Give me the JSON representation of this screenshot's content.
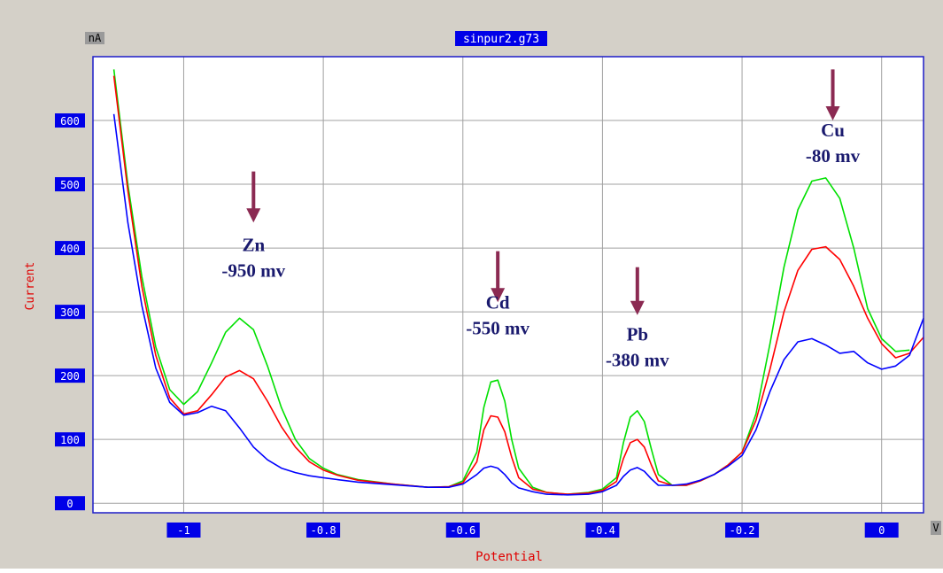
{
  "window": {
    "title": "sinpur2.g73"
  },
  "colors": {
    "panel_bg": "#d4d0c8",
    "plot_bg": "#ffffff",
    "plot_border": "#1c1cc8",
    "grid": "#a0a0a0",
    "tick_label_bg": "#0000e8",
    "tick_label_fg": "#ffffff",
    "axis_title": "#e00000",
    "annotation_text": "#1a1a6e",
    "arrow": "#8b2a52"
  },
  "chart_data": {
    "type": "line",
    "title": "sinpur2.g73",
    "xlabel": "Potential",
    "ylabel": "Current",
    "x_unit": "V",
    "y_unit": "nA",
    "xlim": [
      -1.13,
      0.06
    ],
    "ylim": [
      -15,
      700
    ],
    "x_ticks": [
      {
        "value": -1,
        "label": "-1"
      },
      {
        "value": -0.8,
        "label": "-0.8"
      },
      {
        "value": -0.6,
        "label": "-0.6"
      },
      {
        "value": -0.4,
        "label": "-0.4"
      },
      {
        "value": -0.2,
        "label": "-0.2"
      },
      {
        "value": 0,
        "label": "0"
      }
    ],
    "y_ticks": [
      {
        "value": 0,
        "label": "0"
      },
      {
        "value": 100,
        "label": "100"
      },
      {
        "value": 200,
        "label": "200"
      },
      {
        "value": 300,
        "label": "300"
      },
      {
        "value": 400,
        "label": "400"
      },
      {
        "value": 500,
        "label": "500"
      },
      {
        "value": 600,
        "label": "600"
      }
    ],
    "grid": true,
    "legend": "none",
    "series": [
      {
        "color": "#00e000",
        "x": [
          -1.1,
          -1.08,
          -1.06,
          -1.04,
          -1.02,
          -1.0,
          -0.98,
          -0.96,
          -0.94,
          -0.92,
          -0.9,
          -0.88,
          -0.86,
          -0.84,
          -0.82,
          -0.8,
          -0.78,
          -0.75,
          -0.7,
          -0.65,
          -0.62,
          -0.6,
          -0.58,
          -0.57,
          -0.56,
          -0.55,
          -0.54,
          -0.53,
          -0.52,
          -0.5,
          -0.48,
          -0.45,
          -0.42,
          -0.4,
          -0.38,
          -0.37,
          -0.36,
          -0.35,
          -0.34,
          -0.33,
          -0.32,
          -0.3,
          -0.28,
          -0.26,
          -0.24,
          -0.22,
          -0.2,
          -0.18,
          -0.16,
          -0.14,
          -0.12,
          -0.1,
          -0.08,
          -0.06,
          -0.04,
          -0.02,
          0.0,
          0.02,
          0.04,
          0.06
        ],
        "y": [
          680,
          500,
          355,
          245,
          178,
          155,
          175,
          220,
          268,
          290,
          272,
          215,
          150,
          100,
          70,
          55,
          45,
          37,
          30,
          25,
          26,
          35,
          80,
          150,
          190,
          193,
          160,
          100,
          55,
          25,
          17,
          14,
          17,
          22,
          40,
          95,
          135,
          145,
          128,
          85,
          45,
          28,
          28,
          35,
          45,
          60,
          80,
          140,
          250,
          370,
          460,
          505,
          510,
          478,
          400,
          305,
          258,
          238,
          240,
          null
        ]
      },
      {
        "color": "#ff0000",
        "x": [
          -1.1,
          -1.08,
          -1.06,
          -1.04,
          -1.02,
          -1.0,
          -0.98,
          -0.96,
          -0.94,
          -0.92,
          -0.9,
          -0.88,
          -0.86,
          -0.84,
          -0.82,
          -0.8,
          -0.78,
          -0.75,
          -0.7,
          -0.65,
          -0.62,
          -0.6,
          -0.58,
          -0.57,
          -0.56,
          -0.55,
          -0.54,
          -0.53,
          -0.52,
          -0.5,
          -0.48,
          -0.45,
          -0.42,
          -0.4,
          -0.38,
          -0.37,
          -0.36,
          -0.35,
          -0.34,
          -0.33,
          -0.32,
          -0.3,
          -0.28,
          -0.26,
          -0.24,
          -0.22,
          -0.2,
          -0.18,
          -0.16,
          -0.14,
          -0.12,
          -0.1,
          -0.08,
          -0.06,
          -0.04,
          -0.02,
          0.0,
          0.02,
          0.04,
          0.06
        ],
        "y": [
          670,
          490,
          340,
          232,
          165,
          140,
          145,
          170,
          198,
          208,
          195,
          160,
          120,
          88,
          65,
          52,
          44,
          36,
          30,
          25,
          26,
          32,
          65,
          115,
          137,
          135,
          112,
          72,
          40,
          22,
          17,
          14,
          16,
          20,
          34,
          70,
          95,
          100,
          88,
          60,
          35,
          28,
          28,
          35,
          45,
          60,
          80,
          130,
          210,
          300,
          365,
          398,
          402,
          382,
          340,
          290,
          250,
          228,
          235,
          260
        ]
      },
      {
        "color": "#0000ff",
        "x": [
          -1.1,
          -1.08,
          -1.06,
          -1.04,
          -1.02,
          -1.0,
          -0.98,
          -0.96,
          -0.94,
          -0.92,
          -0.9,
          -0.88,
          -0.86,
          -0.84,
          -0.82,
          -0.8,
          -0.78,
          -0.75,
          -0.7,
          -0.65,
          -0.62,
          -0.6,
          -0.58,
          -0.57,
          -0.56,
          -0.55,
          -0.54,
          -0.53,
          -0.52,
          -0.5,
          -0.48,
          -0.45,
          -0.42,
          -0.4,
          -0.38,
          -0.37,
          -0.36,
          -0.35,
          -0.34,
          -0.33,
          -0.32,
          -0.3,
          -0.28,
          -0.26,
          -0.24,
          -0.22,
          -0.2,
          -0.18,
          -0.16,
          -0.14,
          -0.12,
          -0.1,
          -0.08,
          -0.06,
          -0.04,
          -0.02,
          0.0,
          0.02,
          0.04,
          0.06
        ],
        "y": [
          610,
          440,
          310,
          212,
          158,
          138,
          142,
          152,
          145,
          118,
          88,
          68,
          55,
          48,
          43,
          40,
          37,
          33,
          29,
          25,
          25,
          30,
          45,
          55,
          58,
          55,
          45,
          32,
          24,
          18,
          14,
          13,
          14,
          18,
          28,
          42,
          52,
          56,
          50,
          38,
          28,
          28,
          30,
          36,
          45,
          58,
          75,
          115,
          175,
          225,
          253,
          258,
          248,
          235,
          238,
          220,
          210,
          215,
          232,
          290
        ]
      }
    ],
    "annotations": [
      {
        "label": "Zn",
        "sublabel": "-950 mv",
        "x": -0.9,
        "arrow_top": 520,
        "arrow_bottom": 440,
        "label_y": 395,
        "sublabel_y": 355
      },
      {
        "label": "Cd",
        "sublabel": "-550 mv",
        "x": -0.55,
        "arrow_top": 395,
        "arrow_bottom": 315,
        "label_y": 305,
        "sublabel_y": 265
      },
      {
        "label": "Pb",
        "sublabel": "-380 mv",
        "x": -0.35,
        "arrow_top": 370,
        "arrow_bottom": 295,
        "label_y": 255,
        "sublabel_y": 215
      },
      {
        "label": "Cu",
        "sublabel": "-80 mv",
        "x": -0.07,
        "arrow_top": 680,
        "arrow_bottom": 600,
        "label_y": 575,
        "sublabel_y": 535
      }
    ]
  }
}
